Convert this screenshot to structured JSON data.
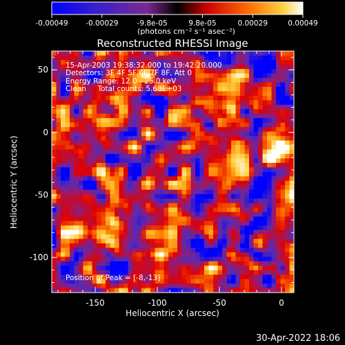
{
  "chart_data": {
    "type": "heatmap",
    "title": "Reconstructed RHESSI Image",
    "xlabel": "Heliocentric X (arcsec)",
    "ylabel": "Heliocentric Y (arcsec)",
    "xlim": [
      -185,
      10
    ],
    "ylim": [
      -128,
      65
    ],
    "x_ticks": [
      -150,
      -100,
      -50,
      0
    ],
    "y_ticks": [
      -100,
      -50,
      0,
      50
    ],
    "colorbar": {
      "range": [
        -0.00049,
        0.00049
      ],
      "ticks": [
        "-0.00049",
        "-0.00029",
        "-9.8e-05",
        "9.8e-05",
        "0.00029",
        "0.00049"
      ],
      "units": "(photons cm⁻² s⁻¹ asec⁻²)"
    },
    "annotations": [
      "15-Apr-2003 19:38:32.000 to 19:42:20.000",
      "Detectors: 3F 4F 5F 6F 7F 8F, Att 0",
      "Energy Range: 12.0 - 25.0 keV",
      "Clean     Total counts: 5.68E+03"
    ],
    "peak_label": "Position of Peak = [-8,-13]",
    "peak_position": [
      -8,
      -13
    ],
    "colors": {
      "colormap": [
        "#0000ff",
        "#5a2ab2",
        "#9a1a6a",
        "#e00000",
        "#ff7a00",
        "#ffd040",
        "#ffffff"
      ],
      "axes": "#ffffff",
      "background": "#000000"
    }
  },
  "footer": {
    "timestamp": "30-Apr-2022 18:06"
  }
}
